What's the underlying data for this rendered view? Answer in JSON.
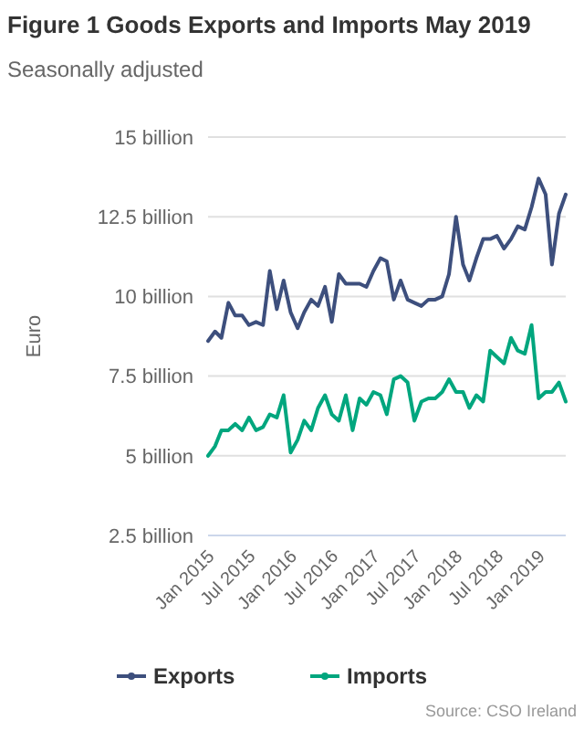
{
  "chart_data": {
    "type": "line",
    "title": "Figure 1 Goods Exports and Imports May 2019",
    "subtitle": "Seasonally adjusted",
    "ylabel": "Euro",
    "annotations": [
      "Source: CSO Ireland"
    ],
    "x": [
      "2015-01",
      "2015-02",
      "2015-03",
      "2015-04",
      "2015-05",
      "2015-06",
      "2015-07",
      "2015-08",
      "2015-09",
      "2015-10",
      "2015-11",
      "2015-12",
      "2016-01",
      "2016-02",
      "2016-03",
      "2016-04",
      "2016-05",
      "2016-06",
      "2016-07",
      "2016-08",
      "2016-09",
      "2016-10",
      "2016-11",
      "2016-12",
      "2017-01",
      "2017-02",
      "2017-03",
      "2017-04",
      "2017-05",
      "2017-06",
      "2017-07",
      "2017-08",
      "2017-09",
      "2017-10",
      "2017-11",
      "2017-12",
      "2018-01",
      "2018-02",
      "2018-03",
      "2018-04",
      "2018-05",
      "2018-06",
      "2018-07",
      "2018-08",
      "2018-09",
      "2018-10",
      "2018-11",
      "2018-12",
      "2019-01",
      "2019-02",
      "2019-03",
      "2019-04",
      "2019-05"
    ],
    "series": [
      {
        "name": "Exports",
        "color": "#3d4f7d",
        "values": [
          8.6,
          8.9,
          8.7,
          9.8,
          9.4,
          9.4,
          9.1,
          9.2,
          9.1,
          10.8,
          9.6,
          10.5,
          9.5,
          9.0,
          9.5,
          9.9,
          9.7,
          10.3,
          9.2,
          10.7,
          10.4,
          10.4,
          10.4,
          10.3,
          10.8,
          11.2,
          11.1,
          9.9,
          10.5,
          9.9,
          9.8,
          9.7,
          9.9,
          9.9,
          10.0,
          10.7,
          12.5,
          11.0,
          10.5,
          11.2,
          11.8,
          11.8,
          11.9,
          11.5,
          11.8,
          12.2,
          12.1,
          12.8,
          13.7,
          13.2,
          11.0,
          12.6,
          13.2
        ]
      },
      {
        "name": "Imports",
        "color": "#00a67e",
        "values": [
          5.0,
          5.3,
          5.8,
          5.8,
          6.0,
          5.8,
          6.2,
          5.8,
          5.9,
          6.3,
          6.2,
          6.9,
          5.1,
          5.5,
          6.1,
          5.8,
          6.5,
          6.9,
          6.3,
          6.1,
          6.9,
          5.8,
          6.8,
          6.6,
          7.0,
          6.9,
          6.3,
          7.4,
          7.5,
          7.3,
          6.1,
          6.7,
          6.8,
          6.8,
          7.0,
          7.4,
          7.0,
          7.0,
          6.5,
          6.9,
          6.7,
          8.3,
          8.1,
          7.9,
          8.7,
          8.3,
          8.2,
          9.1,
          6.8,
          7.0,
          7.0,
          7.3,
          6.7
        ]
      }
    ],
    "xlim": [
      "2015-01",
      "2019-05"
    ],
    "ylim": [
      2.5,
      15
    ],
    "yticks": [
      {
        "value": 2.5,
        "label": "2.5 billion"
      },
      {
        "value": 5,
        "label": "5 billion"
      },
      {
        "value": 7.5,
        "label": "7.5 billion"
      },
      {
        "value": 10,
        "label": "10 billion"
      },
      {
        "value": 12.5,
        "label": "12.5 billion"
      },
      {
        "value": 15,
        "label": "15 billion"
      }
    ],
    "xticks": [
      {
        "value": "2015-01",
        "label": "Jan 2015"
      },
      {
        "value": "2015-07",
        "label": "Jul 2015"
      },
      {
        "value": "2016-01",
        "label": "Jan 2016"
      },
      {
        "value": "2016-07",
        "label": "Jul 2016"
      },
      {
        "value": "2017-01",
        "label": "Jan 2017"
      },
      {
        "value": "2017-07",
        "label": "Jul 2017"
      },
      {
        "value": "2018-01",
        "label": "Jan 2018"
      },
      {
        "value": "2018-07",
        "label": "Jul 2018"
      },
      {
        "value": "2019-01",
        "label": "Jan 2019"
      }
    ],
    "grid": "y",
    "legend": "bottom",
    "marker": "none",
    "line_style": "solid"
  }
}
